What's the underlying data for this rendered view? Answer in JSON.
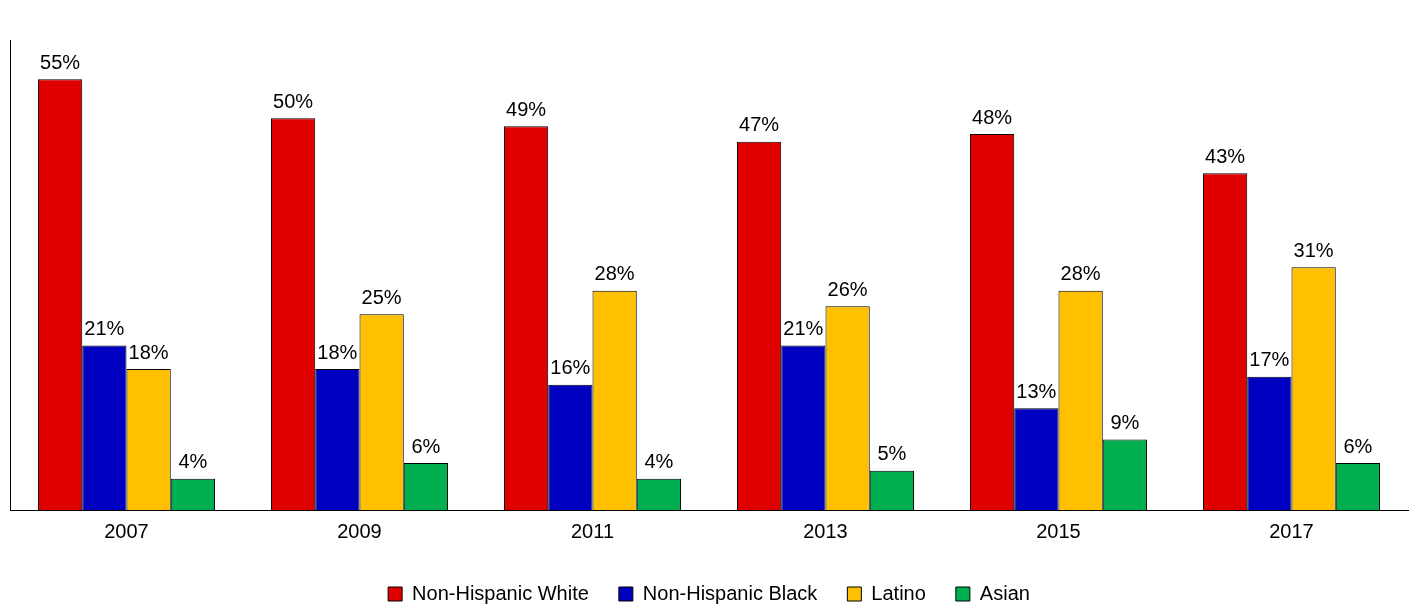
{
  "chart_data": {
    "type": "bar",
    "categories": [
      "2007",
      "2009",
      "2011",
      "2013",
      "2015",
      "2017"
    ],
    "series": [
      {
        "name": "Non-Hispanic White",
        "color": "#e00000",
        "values": [
          55,
          50,
          49,
          47,
          48,
          43
        ],
        "value_labels": [
          "55%",
          "50%",
          "49%",
          "47%",
          "48%",
          "43%"
        ]
      },
      {
        "name": "Non-Hispanic Black",
        "color": "#0000c0",
        "values": [
          21,
          18,
          16,
          21,
          13,
          17
        ],
        "value_labels": [
          "21%",
          "18%",
          "16%",
          "21%",
          "13%",
          "17%"
        ]
      },
      {
        "name": "Latino",
        "color": "#ffc000",
        "values": [
          18,
          25,
          28,
          26,
          28,
          31
        ],
        "value_labels": [
          "18%",
          "25%",
          "28%",
          "26%",
          "28%",
          "31%"
        ]
      },
      {
        "name": "Asian",
        "color": "#00b050",
        "values": [
          4,
          6,
          4,
          5,
          9,
          6
        ],
        "value_labels": [
          "4%",
          "6%",
          "4%",
          "5%",
          "9%",
          "6%"
        ]
      }
    ],
    "legend": "bottom",
    "grid": false
  }
}
